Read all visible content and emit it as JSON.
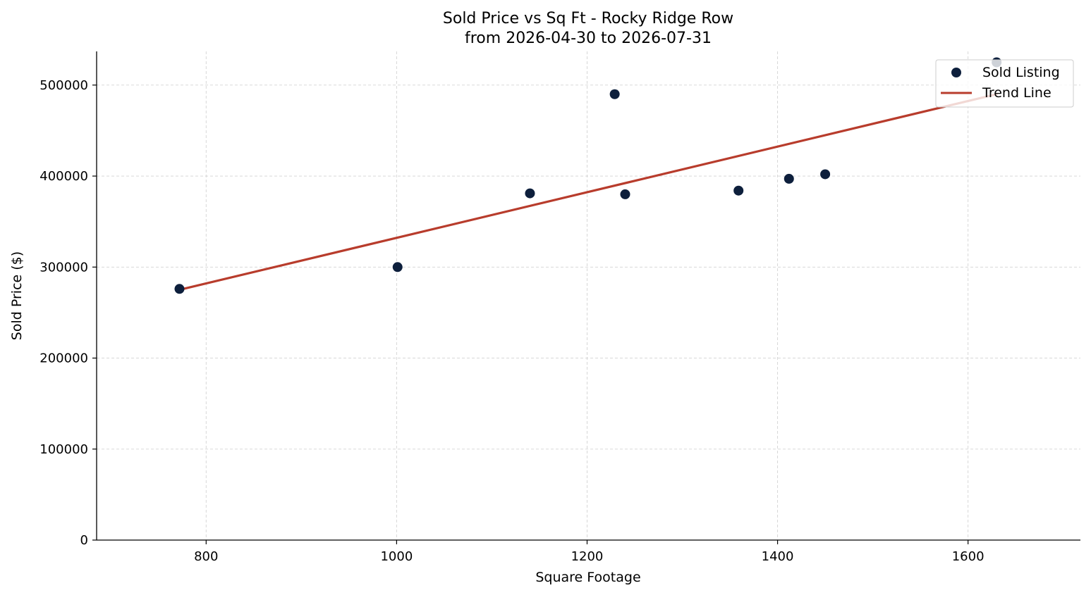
{
  "colors": {
    "points": "#0d1f3c",
    "trend": "#b83c2c",
    "grid": "#d3d3d3"
  },
  "chart_data": {
    "type": "scatter",
    "title_line1": "Sold Price vs Sq Ft - Rocky Ridge Row",
    "title_line2": "from 2026-04-30 to 2026-07-31",
    "xlabel": "Square Footage",
    "ylabel": "Sold Price ($)",
    "xlim": [
      685,
      1718
    ],
    "ylim": [
      0,
      537000
    ],
    "xticks": [
      800,
      1000,
      1200,
      1400,
      1600
    ],
    "yticks": [
      0,
      100000,
      200000,
      300000,
      400000,
      500000
    ],
    "grid": true,
    "legend_position": "top-right",
    "series": [
      {
        "name": "Sold Listing",
        "kind": "scatter",
        "points": [
          {
            "x": 772,
            "y": 276000
          },
          {
            "x": 1001,
            "y": 300000
          },
          {
            "x": 1140,
            "y": 381000
          },
          {
            "x": 1229,
            "y": 490000
          },
          {
            "x": 1240,
            "y": 380000
          },
          {
            "x": 1359,
            "y": 384000
          },
          {
            "x": 1412,
            "y": 397000
          },
          {
            "x": 1450,
            "y": 402000
          },
          {
            "x": 1630,
            "y": 525000
          }
        ]
      },
      {
        "name": "Trend Line",
        "kind": "line",
        "points": [
          {
            "x": 772,
            "y": 275000
          },
          {
            "x": 1630,
            "y": 490000
          }
        ]
      }
    ]
  }
}
